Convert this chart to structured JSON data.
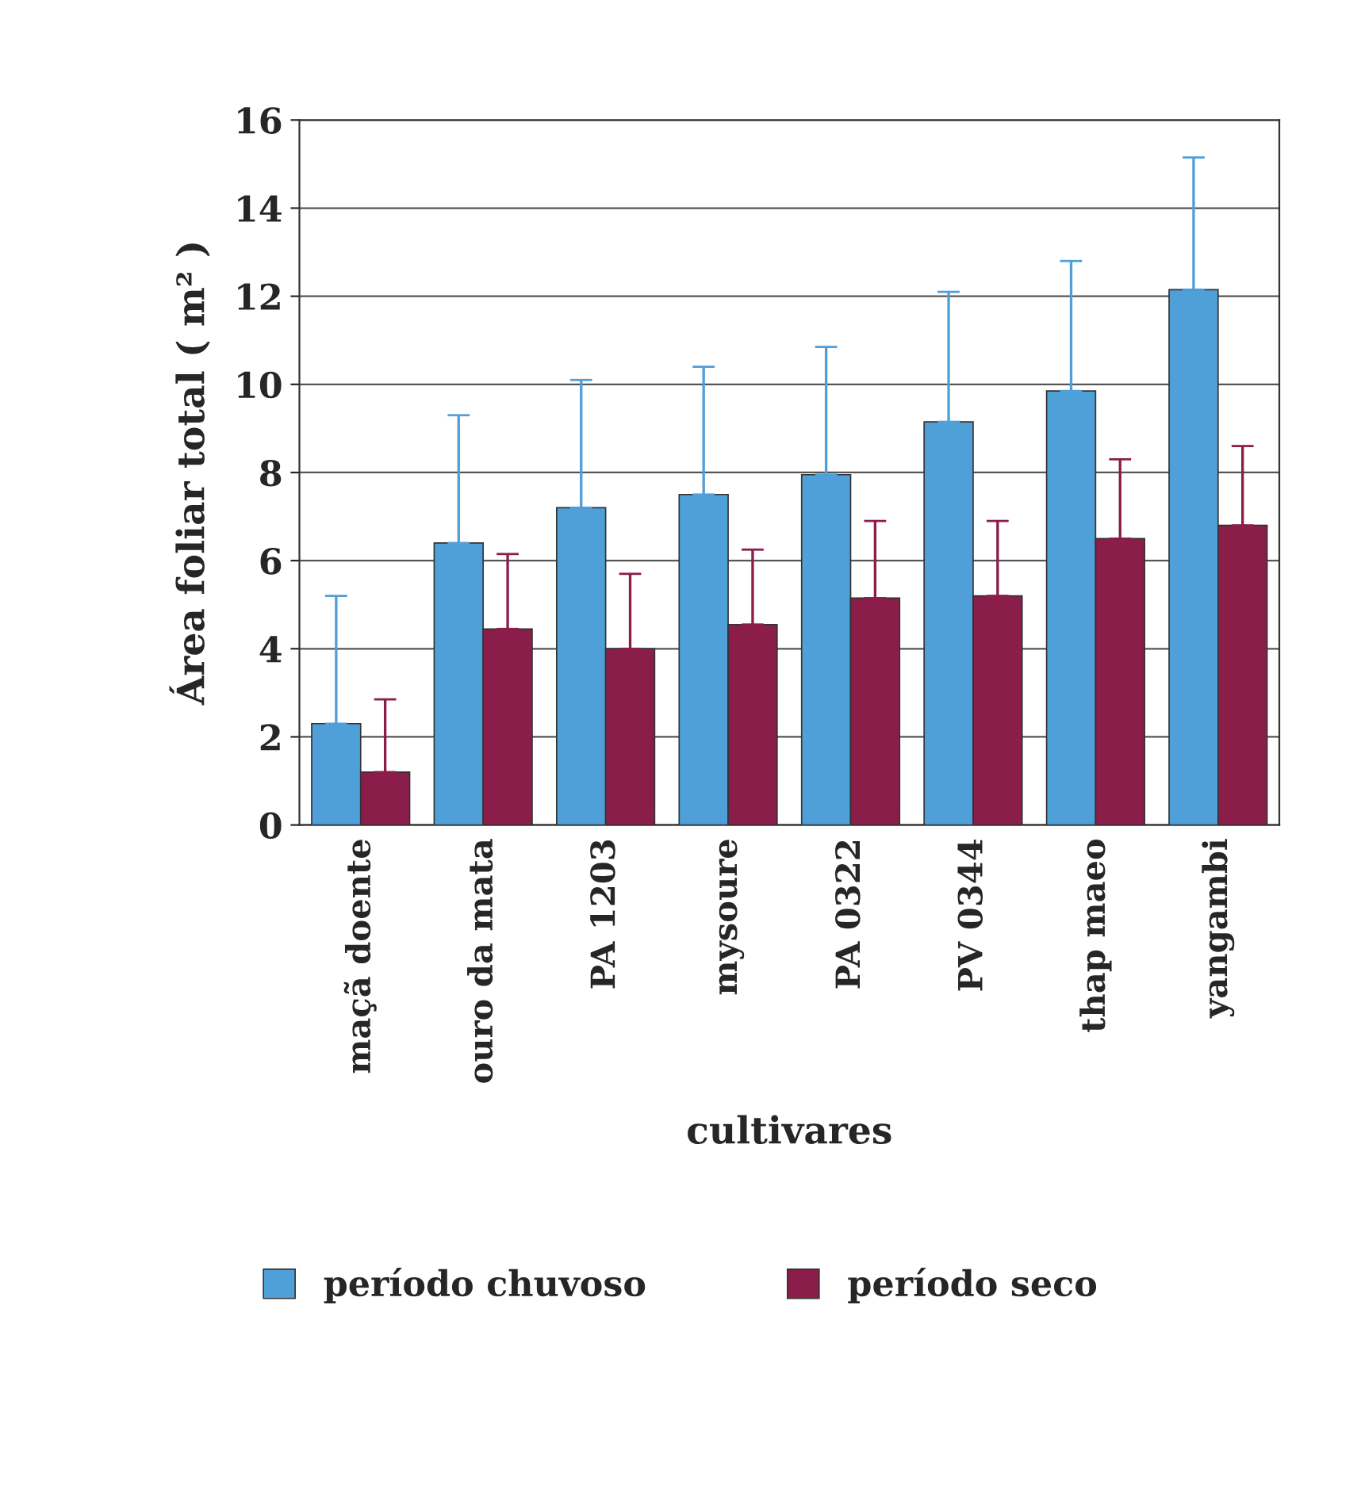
{
  "chart_data": {
    "type": "bar",
    "xlabel": "cultivares",
    "ylabel": "Área foliar total ( m² )",
    "categories": [
      "maçã doente",
      "ouro da mata",
      "PA 1203",
      "mysoure",
      "PA 0322",
      "PV 0344",
      "thap maeo",
      "yangambi"
    ],
    "series": [
      {
        "name": "período chuvoso",
        "color": "#4f9fd9",
        "values": [
          2.3,
          6.4,
          7.2,
          7.5,
          7.95,
          9.15,
          9.85,
          12.15
        ],
        "errors": [
          [
            2.3,
            5.2
          ],
          [
            6.4,
            9.3
          ],
          [
            7.2,
            10.1
          ],
          [
            7.5,
            10.4
          ],
          [
            7.95,
            10.85
          ],
          [
            9.15,
            12.1
          ],
          [
            9.85,
            12.8
          ],
          [
            12.15,
            15.15
          ]
        ]
      },
      {
        "name": "período seco",
        "color": "#8b1d4b",
        "values": [
          1.2,
          4.45,
          4.0,
          4.55,
          5.15,
          5.2,
          6.5,
          6.8
        ],
        "errors": [
          [
            1.2,
            2.85
          ],
          [
            4.45,
            6.15
          ],
          [
            4.0,
            5.7
          ],
          [
            4.55,
            6.25
          ],
          [
            5.15,
            6.9
          ],
          [
            5.2,
            6.9
          ],
          [
            6.5,
            8.3
          ],
          [
            6.8,
            8.6
          ]
        ]
      }
    ],
    "ylim": [
      0,
      16
    ],
    "yticks": [
      0,
      2,
      4,
      6,
      8,
      10,
      12,
      14,
      16
    ],
    "grid": "y",
    "legend": "bottom"
  }
}
